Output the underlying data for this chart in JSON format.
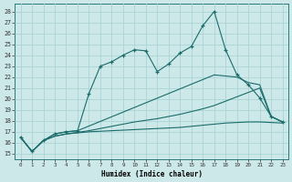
{
  "xlabel": "Humidex (Indice chaleur)",
  "bg_color": "#cde8e8",
  "grid_color": "#b0d8d8",
  "line_color": "#1a6b6b",
  "xlim": [
    -0.5,
    23.5
  ],
  "ylim": [
    14.5,
    28.7
  ],
  "yticks": [
    15,
    16,
    17,
    18,
    19,
    20,
    21,
    22,
    23,
    24,
    25,
    26,
    27,
    28
  ],
  "xticks": [
    0,
    1,
    2,
    3,
    4,
    5,
    6,
    7,
    8,
    9,
    10,
    11,
    12,
    13,
    14,
    15,
    16,
    17,
    18,
    19,
    20,
    21,
    22,
    23
  ],
  "line1_x": [
    0,
    1,
    2,
    3,
    4,
    5,
    6,
    7,
    8,
    9,
    10,
    11,
    12,
    13,
    14,
    15,
    16,
    17,
    18,
    19,
    20,
    21,
    22,
    23
  ],
  "line1_y": [
    16.5,
    15.2,
    16.2,
    16.8,
    17.0,
    17.1,
    20.5,
    23.0,
    23.4,
    24.0,
    24.5,
    24.4,
    22.5,
    23.2,
    24.2,
    24.8,
    26.7,
    28.0,
    24.5,
    22.2,
    21.3,
    20.1,
    18.4,
    17.9
  ],
  "line2_x": [
    0,
    1,
    2,
    3,
    4,
    5,
    17,
    19,
    20,
    21,
    22,
    23
  ],
  "line2_y": [
    16.5,
    15.2,
    16.2,
    16.8,
    17.0,
    17.1,
    22.2,
    22.0,
    21.5,
    21.3,
    18.4,
    17.9
  ],
  "line3_x": [
    0,
    1,
    2,
    3,
    4,
    5,
    6,
    7,
    8,
    9,
    10,
    11,
    12,
    13,
    14,
    15,
    16,
    17,
    18,
    19,
    20,
    21,
    22,
    23
  ],
  "line3_y": [
    16.5,
    15.2,
    16.2,
    16.6,
    16.8,
    16.95,
    17.1,
    17.3,
    17.5,
    17.7,
    17.9,
    18.05,
    18.2,
    18.4,
    18.6,
    18.85,
    19.1,
    19.4,
    19.8,
    20.2,
    20.6,
    21.0,
    18.4,
    17.9
  ],
  "line4_x": [
    0,
    1,
    2,
    3,
    4,
    5,
    6,
    7,
    8,
    9,
    10,
    11,
    12,
    13,
    14,
    15,
    16,
    17,
    18,
    19,
    20,
    21,
    22,
    23
  ],
  "line4_y": [
    16.5,
    15.2,
    16.2,
    16.6,
    16.8,
    16.9,
    17.0,
    17.05,
    17.1,
    17.15,
    17.2,
    17.25,
    17.3,
    17.35,
    17.4,
    17.5,
    17.6,
    17.7,
    17.8,
    17.85,
    17.9,
    17.9,
    17.85,
    17.8
  ]
}
